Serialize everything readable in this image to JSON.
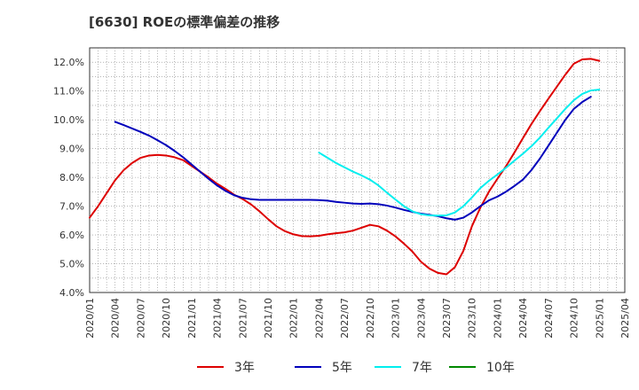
{
  "chart_data": {
    "type": "line",
    "title": "[6630]  ROEの標準偏差の推移",
    "xlabel": "",
    "ylabel": "",
    "ylim": [
      4.0,
      12.5
    ],
    "y_ticks": [
      4.0,
      5.0,
      6.0,
      7.0,
      8.0,
      9.0,
      10.0,
      11.0,
      12.0
    ],
    "y_tick_labels": [
      "4.0%",
      "5.0%",
      "6.0%",
      "7.0%",
      "8.0%",
      "9.0%",
      "10.0%",
      "11.0%",
      "12.0%"
    ],
    "x_tick_labels": [
      "2020/01",
      "2020/04",
      "2020/07",
      "2020/10",
      "2021/01",
      "2021/04",
      "2021/07",
      "2021/10",
      "2022/01",
      "2022/04",
      "2022/07",
      "2022/10",
      "2023/01",
      "2023/04",
      "2023/07",
      "2023/10",
      "2024/01",
      "2024/04",
      "2024/07",
      "2024/10",
      "2025/01",
      "2025/04"
    ],
    "x_range_months": [
      0,
      63
    ],
    "grid": true,
    "legend_position": "bottom",
    "series": [
      {
        "name": "3年",
        "color": "#dd0000",
        "points": [
          [
            0,
            6.6
          ],
          [
            1,
            7.0
          ],
          [
            2,
            7.45
          ],
          [
            3,
            7.9
          ],
          [
            4,
            8.25
          ],
          [
            5,
            8.5
          ],
          [
            6,
            8.68
          ],
          [
            7,
            8.76
          ],
          [
            8,
            8.78
          ],
          [
            9,
            8.76
          ],
          [
            10,
            8.7
          ],
          [
            11,
            8.6
          ],
          [
            12,
            8.4
          ],
          [
            13,
            8.2
          ],
          [
            14,
            8.0
          ],
          [
            15,
            7.78
          ],
          [
            16,
            7.6
          ],
          [
            17,
            7.4
          ],
          [
            18,
            7.25
          ],
          [
            19,
            7.06
          ],
          [
            20,
            6.82
          ],
          [
            21,
            6.55
          ],
          [
            22,
            6.3
          ],
          [
            23,
            6.13
          ],
          [
            24,
            6.02
          ],
          [
            25,
            5.96
          ],
          [
            26,
            5.95
          ],
          [
            27,
            5.97
          ],
          [
            28,
            6.02
          ],
          [
            29,
            6.06
          ],
          [
            30,
            6.09
          ],
          [
            31,
            6.15
          ],
          [
            32,
            6.25
          ],
          [
            33,
            6.35
          ],
          [
            34,
            6.3
          ],
          [
            35,
            6.15
          ],
          [
            36,
            5.95
          ],
          [
            37,
            5.7
          ],
          [
            38,
            5.42
          ],
          [
            39,
            5.07
          ],
          [
            40,
            4.83
          ],
          [
            41,
            4.68
          ],
          [
            42,
            4.63
          ],
          [
            43,
            4.88
          ],
          [
            44,
            5.45
          ],
          [
            45,
            6.3
          ],
          [
            46,
            6.95
          ],
          [
            47,
            7.5
          ],
          [
            48,
            7.95
          ],
          [
            49,
            8.38
          ],
          [
            50,
            8.86
          ],
          [
            51,
            9.36
          ],
          [
            52,
            9.85
          ],
          [
            53,
            10.3
          ],
          [
            54,
            10.73
          ],
          [
            55,
            11.15
          ],
          [
            56,
            11.57
          ],
          [
            57,
            11.95
          ],
          [
            58,
            12.1
          ],
          [
            59,
            12.12
          ],
          [
            60,
            12.05
          ]
        ]
      },
      {
        "name": "5年",
        "color": "#0000bb",
        "points": [
          [
            3,
            9.93
          ],
          [
            4,
            9.82
          ],
          [
            5,
            9.7
          ],
          [
            6,
            9.58
          ],
          [
            7,
            9.45
          ],
          [
            8,
            9.29
          ],
          [
            9,
            9.12
          ],
          [
            10,
            8.92
          ],
          [
            11,
            8.7
          ],
          [
            12,
            8.45
          ],
          [
            13,
            8.2
          ],
          [
            14,
            7.95
          ],
          [
            15,
            7.72
          ],
          [
            16,
            7.53
          ],
          [
            17,
            7.38
          ],
          [
            18,
            7.29
          ],
          [
            19,
            7.24
          ],
          [
            20,
            7.22
          ],
          [
            21,
            7.22
          ],
          [
            22,
            7.22
          ],
          [
            23,
            7.22
          ],
          [
            24,
            7.22
          ],
          [
            25,
            7.22
          ],
          [
            26,
            7.22
          ],
          [
            27,
            7.21
          ],
          [
            28,
            7.19
          ],
          [
            29,
            7.15
          ],
          [
            30,
            7.12
          ],
          [
            31,
            7.09
          ],
          [
            32,
            7.08
          ],
          [
            33,
            7.09
          ],
          [
            34,
            7.07
          ],
          [
            35,
            7.02
          ],
          [
            36,
            6.95
          ],
          [
            37,
            6.87
          ],
          [
            38,
            6.8
          ],
          [
            39,
            6.74
          ],
          [
            40,
            6.7
          ],
          [
            41,
            6.65
          ],
          [
            42,
            6.58
          ],
          [
            43,
            6.53
          ],
          [
            44,
            6.6
          ],
          [
            45,
            6.78
          ],
          [
            46,
            7.0
          ],
          [
            47,
            7.2
          ],
          [
            48,
            7.33
          ],
          [
            49,
            7.5
          ],
          [
            50,
            7.7
          ],
          [
            51,
            7.92
          ],
          [
            52,
            8.25
          ],
          [
            53,
            8.65
          ],
          [
            54,
            9.1
          ],
          [
            55,
            9.55
          ],
          [
            56,
            10.0
          ],
          [
            57,
            10.38
          ],
          [
            58,
            10.62
          ],
          [
            59,
            10.8
          ]
        ]
      },
      {
        "name": "7年",
        "color": "#00eeee",
        "points": [
          [
            27,
            8.86
          ],
          [
            28,
            8.68
          ],
          [
            29,
            8.5
          ],
          [
            30,
            8.35
          ],
          [
            31,
            8.2
          ],
          [
            32,
            8.07
          ],
          [
            33,
            7.92
          ],
          [
            34,
            7.72
          ],
          [
            35,
            7.47
          ],
          [
            36,
            7.23
          ],
          [
            37,
            7.0
          ],
          [
            38,
            6.82
          ],
          [
            39,
            6.72
          ],
          [
            40,
            6.68
          ],
          [
            41,
            6.67
          ],
          [
            42,
            6.68
          ],
          [
            43,
            6.78
          ],
          [
            44,
            7.0
          ],
          [
            45,
            7.3
          ],
          [
            46,
            7.63
          ],
          [
            47,
            7.88
          ],
          [
            48,
            8.1
          ],
          [
            49,
            8.33
          ],
          [
            50,
            8.58
          ],
          [
            51,
            8.82
          ],
          [
            52,
            9.08
          ],
          [
            53,
            9.38
          ],
          [
            54,
            9.72
          ],
          [
            55,
            10.05
          ],
          [
            56,
            10.38
          ],
          [
            57,
            10.68
          ],
          [
            58,
            10.9
          ],
          [
            59,
            11.02
          ],
          [
            60,
            11.05
          ]
        ]
      },
      {
        "name": "10年",
        "color": "#008800",
        "points": []
      }
    ]
  }
}
